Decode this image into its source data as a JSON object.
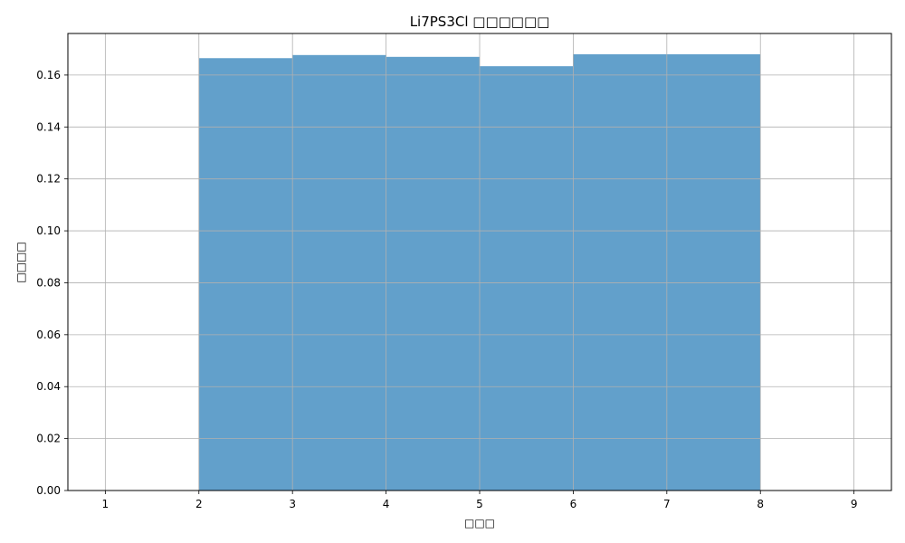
{
  "chart_data": {
    "type": "bar",
    "title": "Li7PS3Cl □□□□□□",
    "xlabel": "□□□",
    "ylabel": "□□□□",
    "xlim": [
      0.6,
      9.4
    ],
    "ylim": [
      0,
      0.176
    ],
    "xticks": [
      1,
      2,
      3,
      4,
      5,
      6,
      7,
      8,
      9
    ],
    "yticks": [
      0.0,
      0.02,
      0.04,
      0.06,
      0.08,
      0.1,
      0.12,
      0.14,
      0.16
    ],
    "ytick_labels": [
      "0.00",
      "0.02",
      "0.04",
      "0.06",
      "0.08",
      "0.10",
      "0.12",
      "0.14",
      "0.16"
    ],
    "grid": true,
    "bar_color": "#62a0cb",
    "bins": [
      {
        "x0": 2,
        "x1": 3,
        "value": 0.1665
      },
      {
        "x0": 3,
        "x1": 4,
        "value": 0.1677
      },
      {
        "x0": 4,
        "x1": 5,
        "value": 0.167
      },
      {
        "x0": 5,
        "x1": 6,
        "value": 0.1634
      },
      {
        "x0": 6,
        "x1": 7,
        "value": 0.168
      },
      {
        "x0": 7,
        "x1": 8,
        "value": 0.168
      }
    ]
  }
}
